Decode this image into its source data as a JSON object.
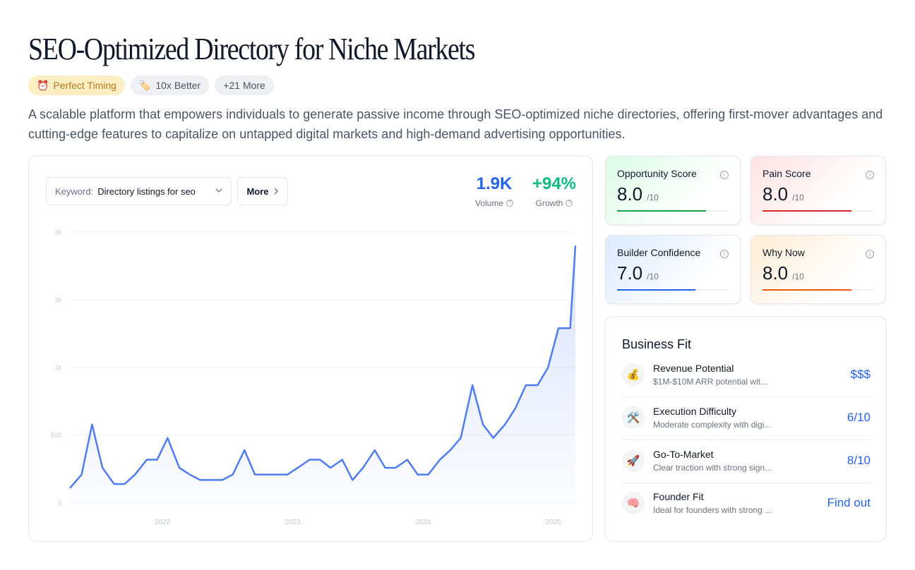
{
  "page": {
    "title": "SEO-Optimized Directory for Niche Markets",
    "badges": [
      {
        "icon": "alarm-clock-icon",
        "glyph": "⏰",
        "label": "Perfect Timing"
      },
      {
        "icon": "tag-icon",
        "glyph": "🏷️",
        "label": "10x Better"
      },
      {
        "label": "+21 More"
      }
    ],
    "description": "A scalable platform that empowers individuals to generate passive income through SEO-optimized niche directories, offering first-mover advantages and cutting-edge features to capitalize on untapped digital markets and high-demand advertising opportunities."
  },
  "trend": {
    "keyword_label": "Keyword:",
    "keyword_value": "Directory listings for seo",
    "more_label": "More",
    "volume": {
      "value": "1.9K",
      "label": "Volume"
    },
    "growth": {
      "value": "+94%",
      "label": "Growth"
    }
  },
  "chart_data": {
    "type": "area",
    "title": "",
    "xlabel": "",
    "ylabel": "",
    "y_tick_labels": [
      "0",
      "500",
      "1k",
      "2k",
      "2k"
    ],
    "y_tick_values": [
      0,
      500,
      1000,
      1500,
      2000
    ],
    "x_tick_labels": [
      "2022",
      "2023",
      "2024",
      "2025"
    ],
    "x_tick_values": [
      2022,
      2023,
      2024,
      2025
    ],
    "ylim": [
      0,
      2000
    ],
    "xlim": [
      2021.29,
      2025.17
    ],
    "color": "#4f7cf0",
    "x": [
      2021.29,
      2021.38,
      2021.46,
      2021.54,
      2021.63,
      2021.71,
      2021.79,
      2021.88,
      2021.96,
      2022.04,
      2022.13,
      2022.21,
      2022.29,
      2022.38,
      2022.46,
      2022.54,
      2022.63,
      2022.71,
      2022.79,
      2022.88,
      2022.96,
      2023.04,
      2023.13,
      2023.21,
      2023.29,
      2023.38,
      2023.46,
      2023.54,
      2023.63,
      2023.71,
      2023.79,
      2023.88,
      2023.96,
      2024.04,
      2024.13,
      2024.21,
      2024.29,
      2024.38,
      2024.46,
      2024.54,
      2024.63,
      2024.71,
      2024.79,
      2024.88,
      2024.96,
      2025.04,
      2025.13,
      2025.17
    ],
    "y": [
      110,
      210,
      580,
      260,
      140,
      140,
      210,
      320,
      320,
      480,
      260,
      210,
      170,
      170,
      170,
      210,
      390,
      210,
      210,
      210,
      210,
      260,
      320,
      320,
      260,
      320,
      170,
      260,
      390,
      260,
      260,
      320,
      210,
      210,
      320,
      390,
      480,
      870,
      580,
      480,
      580,
      700,
      870,
      870,
      1000,
      1290,
      1290,
      1900
    ]
  },
  "scores": [
    {
      "name": "Opportunity Score",
      "value": "8.0",
      "max": "/10",
      "level": 0.8,
      "color": "#16a34a"
    },
    {
      "name": "Pain Score",
      "value": "8.0",
      "max": "/10",
      "level": 0.8,
      "color": "#dc2626"
    },
    {
      "name": "Builder Confidence",
      "value": "7.0",
      "max": "/10",
      "level": 0.7,
      "color": "#2563eb"
    },
    {
      "name": "Why Now",
      "value": "8.0",
      "max": "/10",
      "level": 0.8,
      "color": "#ea580c"
    }
  ],
  "business_fit": {
    "title": "Business Fit",
    "rows": [
      {
        "icon": "money-bag-icon",
        "glyph": "💰",
        "title": "Revenue Potential",
        "subtitle": "$1M-$10M ARR potential wit...",
        "value": "$$$"
      },
      {
        "icon": "hammer-wrench-icon",
        "glyph": "🛠️",
        "title": "Execution Difficulty",
        "subtitle": "Moderate complexity with digi...",
        "value": "6/10"
      },
      {
        "icon": "rocket-icon",
        "glyph": "🚀",
        "title": "Go-To-Market",
        "subtitle": "Clear traction with strong sign...",
        "value": "8/10"
      },
      {
        "icon": "brain-icon",
        "glyph": "🧠",
        "title": "Founder Fit",
        "subtitle": "Ideal for founders with strong ...",
        "value": "Find out"
      }
    ]
  }
}
